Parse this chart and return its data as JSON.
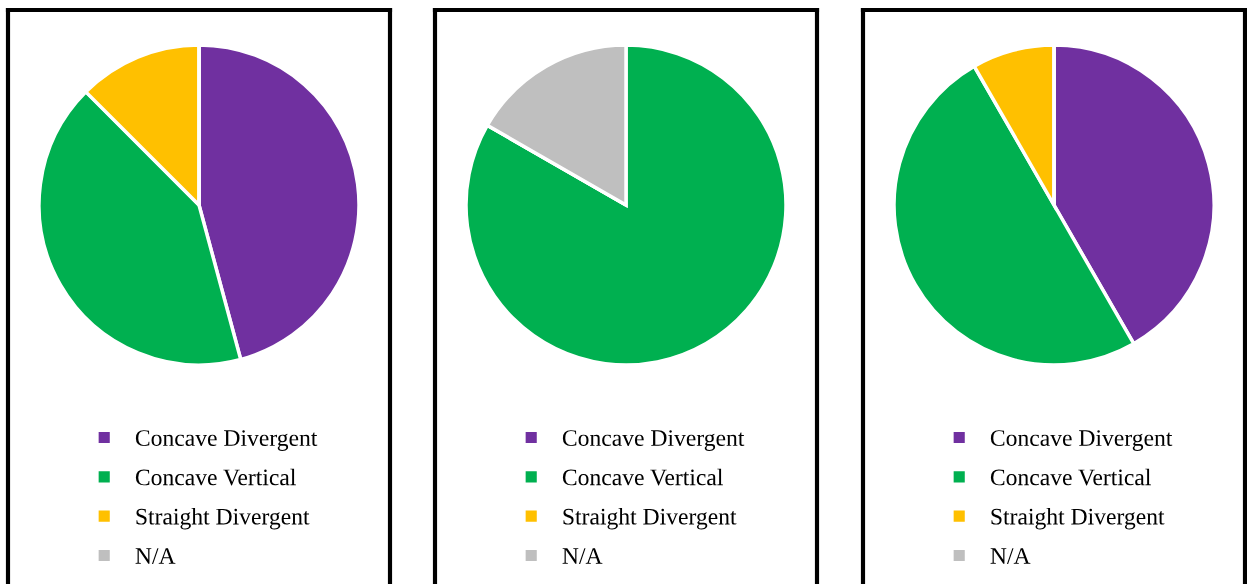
{
  "chart_data": [
    {
      "type": "pie",
      "categories": [
        "Concave Divergent",
        "Concave Vertical",
        "Straight Divergent",
        "N/A"
      ],
      "values": [
        45.8,
        41.7,
        12.5,
        0
      ],
      "colors": [
        "#7030a0",
        "#00b050",
        "#ffc000",
        "#bfbfbf"
      ],
      "legend": "bottom"
    },
    {
      "type": "pie",
      "categories": [
        "Concave Divergent",
        "Concave Vertical",
        "Straight Divergent",
        "N/A"
      ],
      "values": [
        0,
        83.3,
        0,
        16.7
      ],
      "colors": [
        "#7030a0",
        "#00b050",
        "#ffc000",
        "#bfbfbf"
      ],
      "legend": "bottom"
    },
    {
      "type": "pie",
      "categories": [
        "Concave Divergent",
        "Concave Vertical",
        "Straight Divergent",
        "N/A"
      ],
      "values": [
        41.7,
        50,
        8.3,
        0
      ],
      "colors": [
        "#7030a0",
        "#00b050",
        "#ffc000",
        "#bfbfbf"
      ],
      "legend": "bottom"
    }
  ]
}
